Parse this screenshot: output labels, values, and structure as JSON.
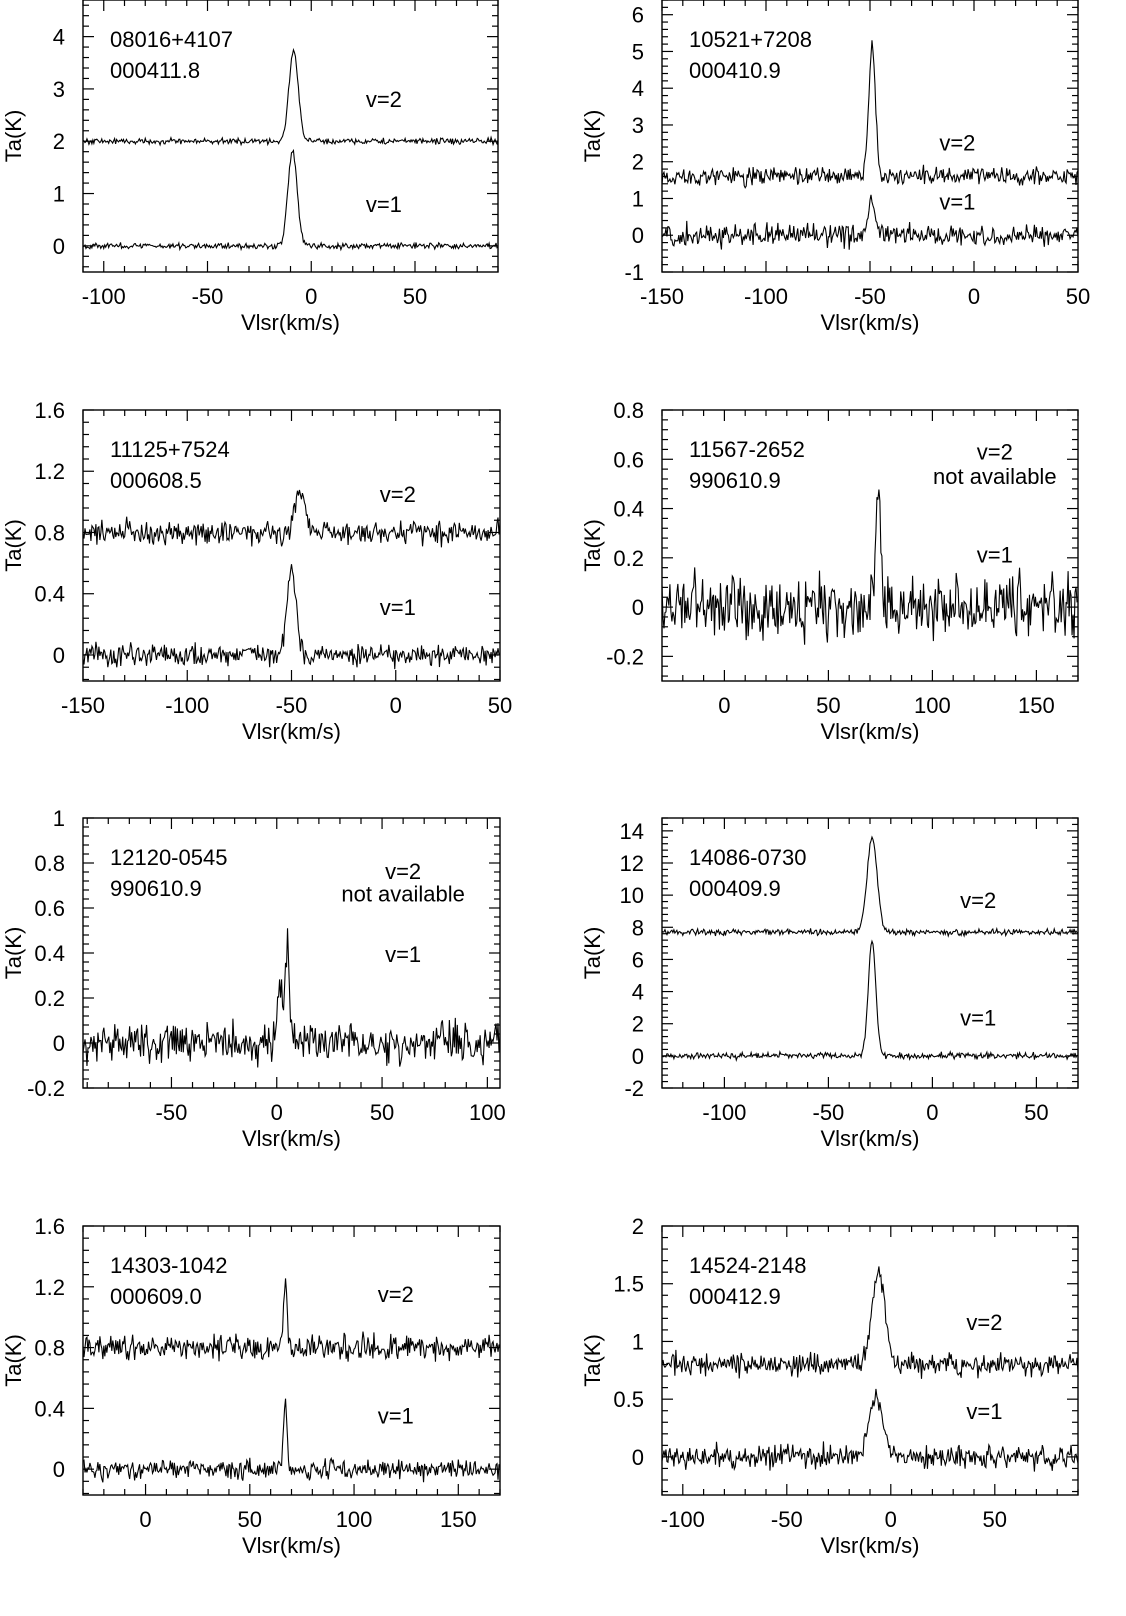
{
  "figure": {
    "background": "#ffffff",
    "ink": "#000000"
  },
  "chart_data": [
    {
      "type": "line",
      "source": "08016+4107",
      "date": "000411.8",
      "xlabel": "Vlsr(km/s)",
      "ylabel": "Ta(K)",
      "xlim": [
        -110,
        90
      ],
      "ylim": [
        -0.5,
        4.7
      ],
      "xticks": [
        -100,
        -50,
        0,
        50
      ],
      "yticks": [
        0,
        1,
        2,
        3,
        4
      ],
      "series": [
        {
          "name": "v=2",
          "baseline": 2.0,
          "noise": 0.035,
          "peaks": [
            {
              "x": -8.5,
              "amp": 1.75,
              "width": 2.2
            }
          ]
        },
        {
          "name": "v=1",
          "baseline": 0.0,
          "noise": 0.035,
          "peaks": [
            {
              "x": -9,
              "amp": 1.8,
              "width": 2.2
            }
          ]
        }
      ],
      "annotations": [
        {
          "text": "v=2",
          "x": 35,
          "y": 2.65
        },
        {
          "text": "v=1",
          "x": 35,
          "y": 0.65
        }
      ]
    },
    {
      "type": "line",
      "source": "10521+7208",
      "date": "000410.9",
      "xlabel": "Vlsr(km/s)",
      "ylabel": "Ta(K)",
      "xlim": [
        -150,
        50
      ],
      "ylim": [
        -1,
        6.4
      ],
      "xticks": [
        -150,
        -100,
        -50,
        0,
        50
      ],
      "yticks": [
        -1,
        0,
        1,
        2,
        3,
        4,
        5,
        6
      ],
      "series": [
        {
          "name": "v=2",
          "baseline": 1.6,
          "noise": 0.15,
          "peaks": [
            {
              "x": -49,
              "amp": 3.6,
              "width": 1.6
            }
          ]
        },
        {
          "name": "v=1",
          "baseline": 0.0,
          "noise": 0.18,
          "peaks": [
            {
              "x": -49,
              "amp": 0.9,
              "width": 1.8
            }
          ]
        }
      ],
      "annotations": [
        {
          "text": "v=2",
          "x": -8,
          "y": 2.3
        },
        {
          "text": "v=1",
          "x": -8,
          "y": 0.7
        }
      ]
    },
    {
      "type": "line",
      "source": "11125+7524",
      "date": "000608.5",
      "xlabel": "Vlsr(km/s)",
      "ylabel": "Ta(K)",
      "xlim": [
        -150,
        50
      ],
      "ylim": [
        -0.17,
        1.6
      ],
      "xticks": [
        -150,
        -100,
        -50,
        0,
        50
      ],
      "yticks": [
        0,
        0.4,
        0.8,
        1.2,
        1.6
      ],
      "series": [
        {
          "name": "v=2",
          "baseline": 0.8,
          "noise": 0.045,
          "peaks": [
            {
              "x": -46,
              "amp": 0.28,
              "width": 2.4
            }
          ]
        },
        {
          "name": "v=1",
          "baseline": 0.0,
          "noise": 0.045,
          "peaks": [
            {
              "x": -50,
              "amp": 0.55,
              "width": 2.2
            }
          ]
        }
      ],
      "annotations": [
        {
          "text": "v=2",
          "x": 1,
          "y": 1.0
        },
        {
          "text": "v=1",
          "x": 1,
          "y": 0.26
        }
      ]
    },
    {
      "type": "line",
      "source": "11567-2652",
      "date": "990610.9",
      "xlabel": "Vlsr(km/s)",
      "ylabel": "Ta(K)",
      "xlim": [
        -30,
        170
      ],
      "ylim": [
        -0.3,
        0.8
      ],
      "xticks": [
        0,
        50,
        100,
        150
      ],
      "yticks": [
        -0.2,
        0,
        0.2,
        0.4,
        0.6,
        0.8
      ],
      "series": [
        {
          "name": "v=1",
          "baseline": 0.0,
          "noise": 0.075,
          "peaks": [
            {
              "x": 74,
              "amp": 0.42,
              "width": 1.3
            }
          ]
        }
      ],
      "annotations": [
        {
          "text": "v=2",
          "x": 130,
          "y": 0.6
        },
        {
          "text": "not available",
          "x": 130,
          "y": 0.5
        },
        {
          "text": "v=1",
          "x": 130,
          "y": 0.18
        }
      ]
    },
    {
      "type": "line",
      "source": "12120-0545",
      "date": "990610.9",
      "xlabel": "Vlsr(km/s)",
      "ylabel": "Ta(K)",
      "xlim": [
        -92,
        106
      ],
      "ylim": [
        -0.2,
        1.0
      ],
      "xticks": [
        -50,
        0,
        50,
        100
      ],
      "yticks": [
        -0.2,
        0,
        0.2,
        0.4,
        0.6,
        0.8,
        1
      ],
      "series": [
        {
          "name": "v=1",
          "baseline": 0.0,
          "noise": 0.055,
          "peaks": [
            {
              "x": 1.5,
              "amp": 0.3,
              "width": 1.0
            },
            {
              "x": 5,
              "amp": 0.45,
              "width": 1.0
            }
          ]
        }
      ],
      "annotations": [
        {
          "text": "v=2",
          "x": 60,
          "y": 0.73
        },
        {
          "text": "not available",
          "x": 60,
          "y": 0.63
        },
        {
          "text": "v=1",
          "x": 60,
          "y": 0.36
        }
      ]
    },
    {
      "type": "line",
      "source": "14086-0730",
      "date": "000409.9",
      "xlabel": "Vlsr(km/s)",
      "ylabel": "Ta(K)",
      "xlim": [
        -130,
        70
      ],
      "ylim": [
        -2,
        14.8
      ],
      "xticks": [
        -100,
        -50,
        0,
        50
      ],
      "yticks": [
        -2,
        0,
        2,
        4,
        6,
        8,
        10,
        12,
        14
      ],
      "series": [
        {
          "name": "v=2",
          "baseline": 7.7,
          "noise": 0.12,
          "peaks": [
            {
              "x": -29,
              "amp": 5.9,
              "width": 2.4
            }
          ]
        },
        {
          "name": "v=1",
          "baseline": 0.0,
          "noise": 0.12,
          "peaks": [
            {
              "x": -29,
              "amp": 7.2,
              "width": 1.8
            }
          ]
        }
      ],
      "annotations": [
        {
          "text": "v=2",
          "x": 22,
          "y": 9.2
        },
        {
          "text": "v=1",
          "x": 22,
          "y": 1.9
        }
      ]
    },
    {
      "type": "line",
      "source": "14303-1042",
      "date": "000609.0",
      "xlabel": "Vlsr(km/s)",
      "ylabel": "Ta(K)",
      "xlim": [
        -30,
        170
      ],
      "ylim": [
        -0.17,
        1.6
      ],
      "xticks": [
        0,
        50,
        100,
        150
      ],
      "yticks": [
        0,
        0.4,
        0.8,
        1.2,
        1.6
      ],
      "series": [
        {
          "name": "v=2",
          "baseline": 0.8,
          "noise": 0.05,
          "peaks": [
            {
              "x": 67,
              "amp": 0.45,
              "width": 0.8
            }
          ]
        },
        {
          "name": "v=1",
          "baseline": 0.0,
          "noise": 0.04,
          "peaks": [
            {
              "x": 67,
              "amp": 0.48,
              "width": 0.8
            }
          ]
        }
      ],
      "annotations": [
        {
          "text": "v=2",
          "x": 120,
          "y": 1.1
        },
        {
          "text": "v=1",
          "x": 120,
          "y": 0.3
        }
      ]
    },
    {
      "type": "line",
      "source": "14524-2148",
      "date": "000412.9",
      "xlabel": "Vlsr(km/s)",
      "ylabel": "Ta(K)",
      "xlim": [
        -110,
        90
      ],
      "ylim": [
        -0.33,
        2.0
      ],
      "xticks": [
        -100,
        -50,
        0,
        50
      ],
      "yticks": [
        0,
        0.5,
        1,
        1.5,
        2
      ],
      "series": [
        {
          "name": "v=2",
          "baseline": 0.8,
          "noise": 0.06,
          "peaks": [
            {
              "x": -6,
              "amp": 0.8,
              "width": 3.0
            }
          ]
        },
        {
          "name": "v=1",
          "baseline": 0.0,
          "noise": 0.06,
          "peaks": [
            {
              "x": -7,
              "amp": 0.52,
              "width": 3.2
            }
          ]
        }
      ],
      "annotations": [
        {
          "text": "v=2",
          "x": 45,
          "y": 1.1
        },
        {
          "text": "v=1",
          "x": 45,
          "y": 0.33
        }
      ]
    }
  ]
}
